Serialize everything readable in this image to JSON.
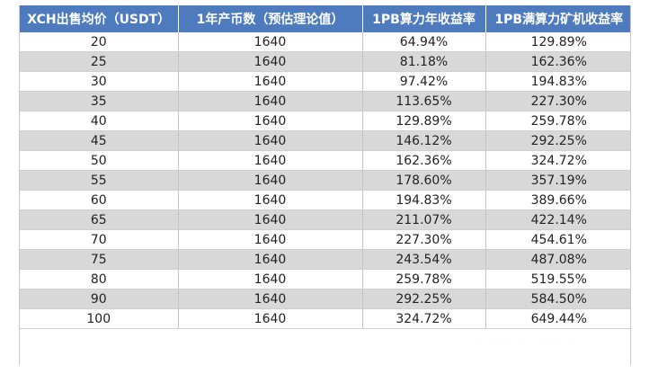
{
  "table": {
    "headers": [
      "XCH出售均价（USDT）",
      "1年产币数（预估理论值）",
      "1PB算力年收益率",
      "1PB满算力矿机收益率"
    ],
    "rows": [
      [
        "20",
        "1640",
        "64.94%",
        "129.89%"
      ],
      [
        "25",
        "1640",
        "81.18%",
        "162.36%"
      ],
      [
        "30",
        "1640",
        "97.42%",
        "194.83%"
      ],
      [
        "35",
        "1640",
        "113.65%",
        "227.30%"
      ],
      [
        "40",
        "1640",
        "129.89%",
        "259.78%"
      ],
      [
        "45",
        "1640",
        "146.12%",
        "292.25%"
      ],
      [
        "50",
        "1640",
        "162.36%",
        "324.72%"
      ],
      [
        "55",
        "1640",
        "178.60%",
        "357.19%"
      ],
      [
        "60",
        "1640",
        "194.83%",
        "389.66%"
      ],
      [
        "65",
        "1640",
        "211.07%",
        "422.14%"
      ],
      [
        "70",
        "1640",
        "227.30%",
        "454.61%"
      ],
      [
        "75",
        "1640",
        "243.54%",
        "487.08%"
      ],
      [
        "80",
        "1640",
        "259.78%",
        "519.55%"
      ],
      [
        "90",
        "1640",
        "292.25%",
        "584.50%"
      ],
      [
        "100",
        "1640",
        "324.72%",
        "649.44%"
      ]
    ]
  },
  "colors": {
    "header_bg": "#4d7bbd",
    "header_text": "#ffffff",
    "row_alt_bg": "#d8d8d8"
  }
}
